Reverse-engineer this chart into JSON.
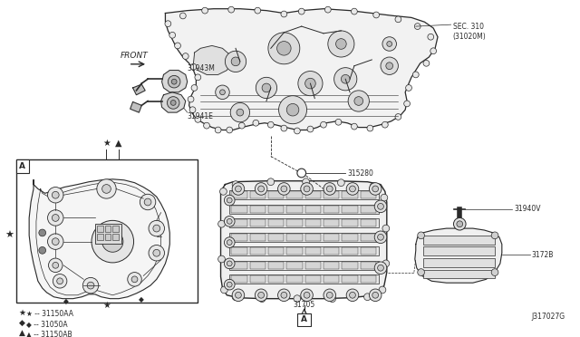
{
  "bg_color": "#ffffff",
  "fig_width": 6.4,
  "fig_height": 3.72,
  "dpi": 100,
  "lc": "#2a2a2a",
  "tc": "#2a2a2a",
  "labels": {
    "front": "FRONT",
    "p31943M": "31943M",
    "p31941E": "31941E",
    "pSEC310": "SEC. 310\n(31020M)",
    "p315280": "315280",
    "p31705": "31705",
    "p31940V": "31940V",
    "p3172B": "3172B",
    "leg_star": "★ -- 31150AA",
    "leg_dia": "◆ -- 31050A",
    "leg_tri": "▲ -- 31150AB",
    "drw_num": "J317027G",
    "boxA": "A"
  }
}
